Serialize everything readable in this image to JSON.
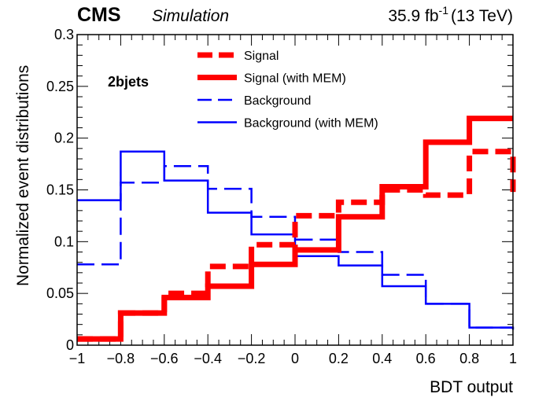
{
  "chart_data": {
    "type": "step",
    "experiment": "CMS",
    "status": "Simulation",
    "luminosity": "35.9 fb",
    "luminosity_unit_exponent": "-1",
    "energy": "(13 TeV)",
    "category": "2bjets",
    "xlabel": "BDT output",
    "ylabel": "Normalized event distributions",
    "xlim": [
      -1,
      1
    ],
    "ylim": [
      0,
      0.3
    ],
    "x_ticks": [
      "−1",
      "−0.8",
      "−0.6",
      "−0.4",
      "−0.2",
      "0",
      "0.2",
      "0.4",
      "0.6",
      "0.8",
      "1"
    ],
    "y_ticks": [
      "0",
      "0.05",
      "0.1",
      "0.15",
      "0.2",
      "0.25",
      "0.3"
    ],
    "legend_position": "top-center",
    "bin_edges": [
      -1.0,
      -0.8,
      -0.6,
      -0.4,
      -0.2,
      0.0,
      0.2,
      0.4,
      0.6,
      0.8,
      1.0
    ],
    "series": [
      {
        "name": "Signal",
        "color": "#ff0000",
        "style": "dashed",
        "weight": "thick",
        "values": [
          0.006,
          0.031,
          0.05,
          0.076,
          0.097,
          0.125,
          0.138,
          0.15,
          0.145,
          0.187,
          0.148
        ]
      },
      {
        "name": "Signal (with MEM)",
        "color": "#ff0000",
        "style": "solid",
        "weight": "thick",
        "values": [
          0.006,
          0.031,
          0.046,
          0.057,
          0.078,
          0.092,
          0.124,
          0.153,
          0.196,
          0.219,
          0.219
        ]
      },
      {
        "name": "Background",
        "color": "#0000ff",
        "style": "dashed",
        "weight": "thin",
        "values": [
          0.078,
          0.157,
          0.173,
          0.151,
          0.124,
          0.102,
          0.09,
          0.068,
          0.04,
          0.017,
          0.017
        ]
      },
      {
        "name": "Background (with MEM)",
        "color": "#0000ff",
        "style": "solid",
        "weight": "thin",
        "values": [
          0.14,
          0.187,
          0.159,
          0.128,
          0.107,
          0.086,
          0.077,
          0.057,
          0.04,
          0.017,
          0.015
        ]
      }
    ]
  }
}
